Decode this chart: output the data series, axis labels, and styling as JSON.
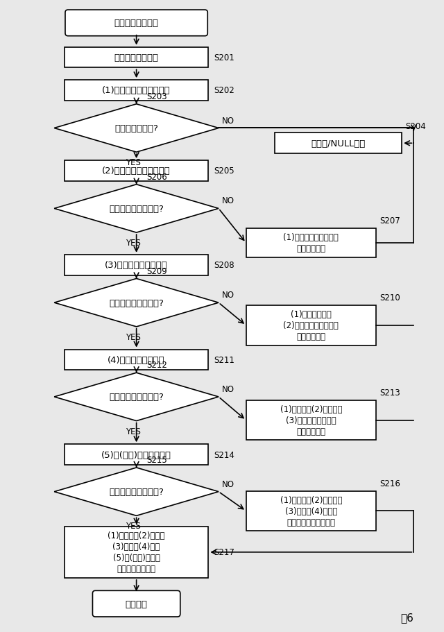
{
  "fig_label": "図6",
  "background_color": "#e8e8e8",
  "font_jp": "IPAexGothic",
  "font_fallbacks": [
    "Noto Sans CJK JP",
    "Yu Gothic",
    "MS Gothic",
    "TakaoPGothic",
    "VL Gothic"
  ],
  "nodes": {
    "start": {
      "label": "住所関連情報取得"
    },
    "S201": {
      "label": "地図情報受け取り",
      "tag": "S201"
    },
    "S202": {
      "label": "(1)都道府県図形判定処理",
      "tag": "S202"
    },
    "S203": {
      "label": "図形に含まれる?",
      "tag": "S203"
    },
    "S204": {
      "label": "エラー/NULL出力",
      "tag": "S204"
    },
    "S205": {
      "label": "(2)市郡町村図形判定処理",
      "tag": "S205"
    },
    "S206": {
      "label": "当該図形に含まれる?",
      "tag": "S206"
    },
    "S207": {
      "label": "(1)都道府県の図形及び\n文字列を取得",
      "tag": "S207"
    },
    "S208": {
      "label": "(3)字丁目図形判定処理",
      "tag": "S208"
    },
    "S209": {
      "label": "当該図形に含まれる?",
      "tag": "S209"
    },
    "S210": {
      "label": "(1)都道府県及び\n(2)市郡町村の図形及び\n文字列を取得",
      "tag": "S210"
    },
    "S211": {
      "label": "(4)番地図形判定処理",
      "tag": "S211"
    },
    "S212": {
      "label": "当該図形に含まれる?",
      "tag": "S212"
    },
    "S213": {
      "label": "(1)都道府県(2)市郡町村\n(3)字丁目の図形及び\n文字列を取得",
      "tag": "S213"
    },
    "S214": {
      "label": "(5)号(家屋)図形判定処理",
      "tag": "S214"
    },
    "S215": {
      "label": "当該図形に含まれる?",
      "tag": "S215"
    },
    "S216": {
      "label": "(1)都道府県(2)市郡町村\n(3)字丁目(4)番地の\n図形及び文字列を取得",
      "tag": "S216"
    },
    "S217": {
      "label": "(1)都道府県(2)郡町村\n(3)字丁目(4)番地\n(5)号(家屋)の図形\n及び文字列を出力",
      "tag": "S217"
    },
    "return": {
      "label": "リターン"
    }
  }
}
